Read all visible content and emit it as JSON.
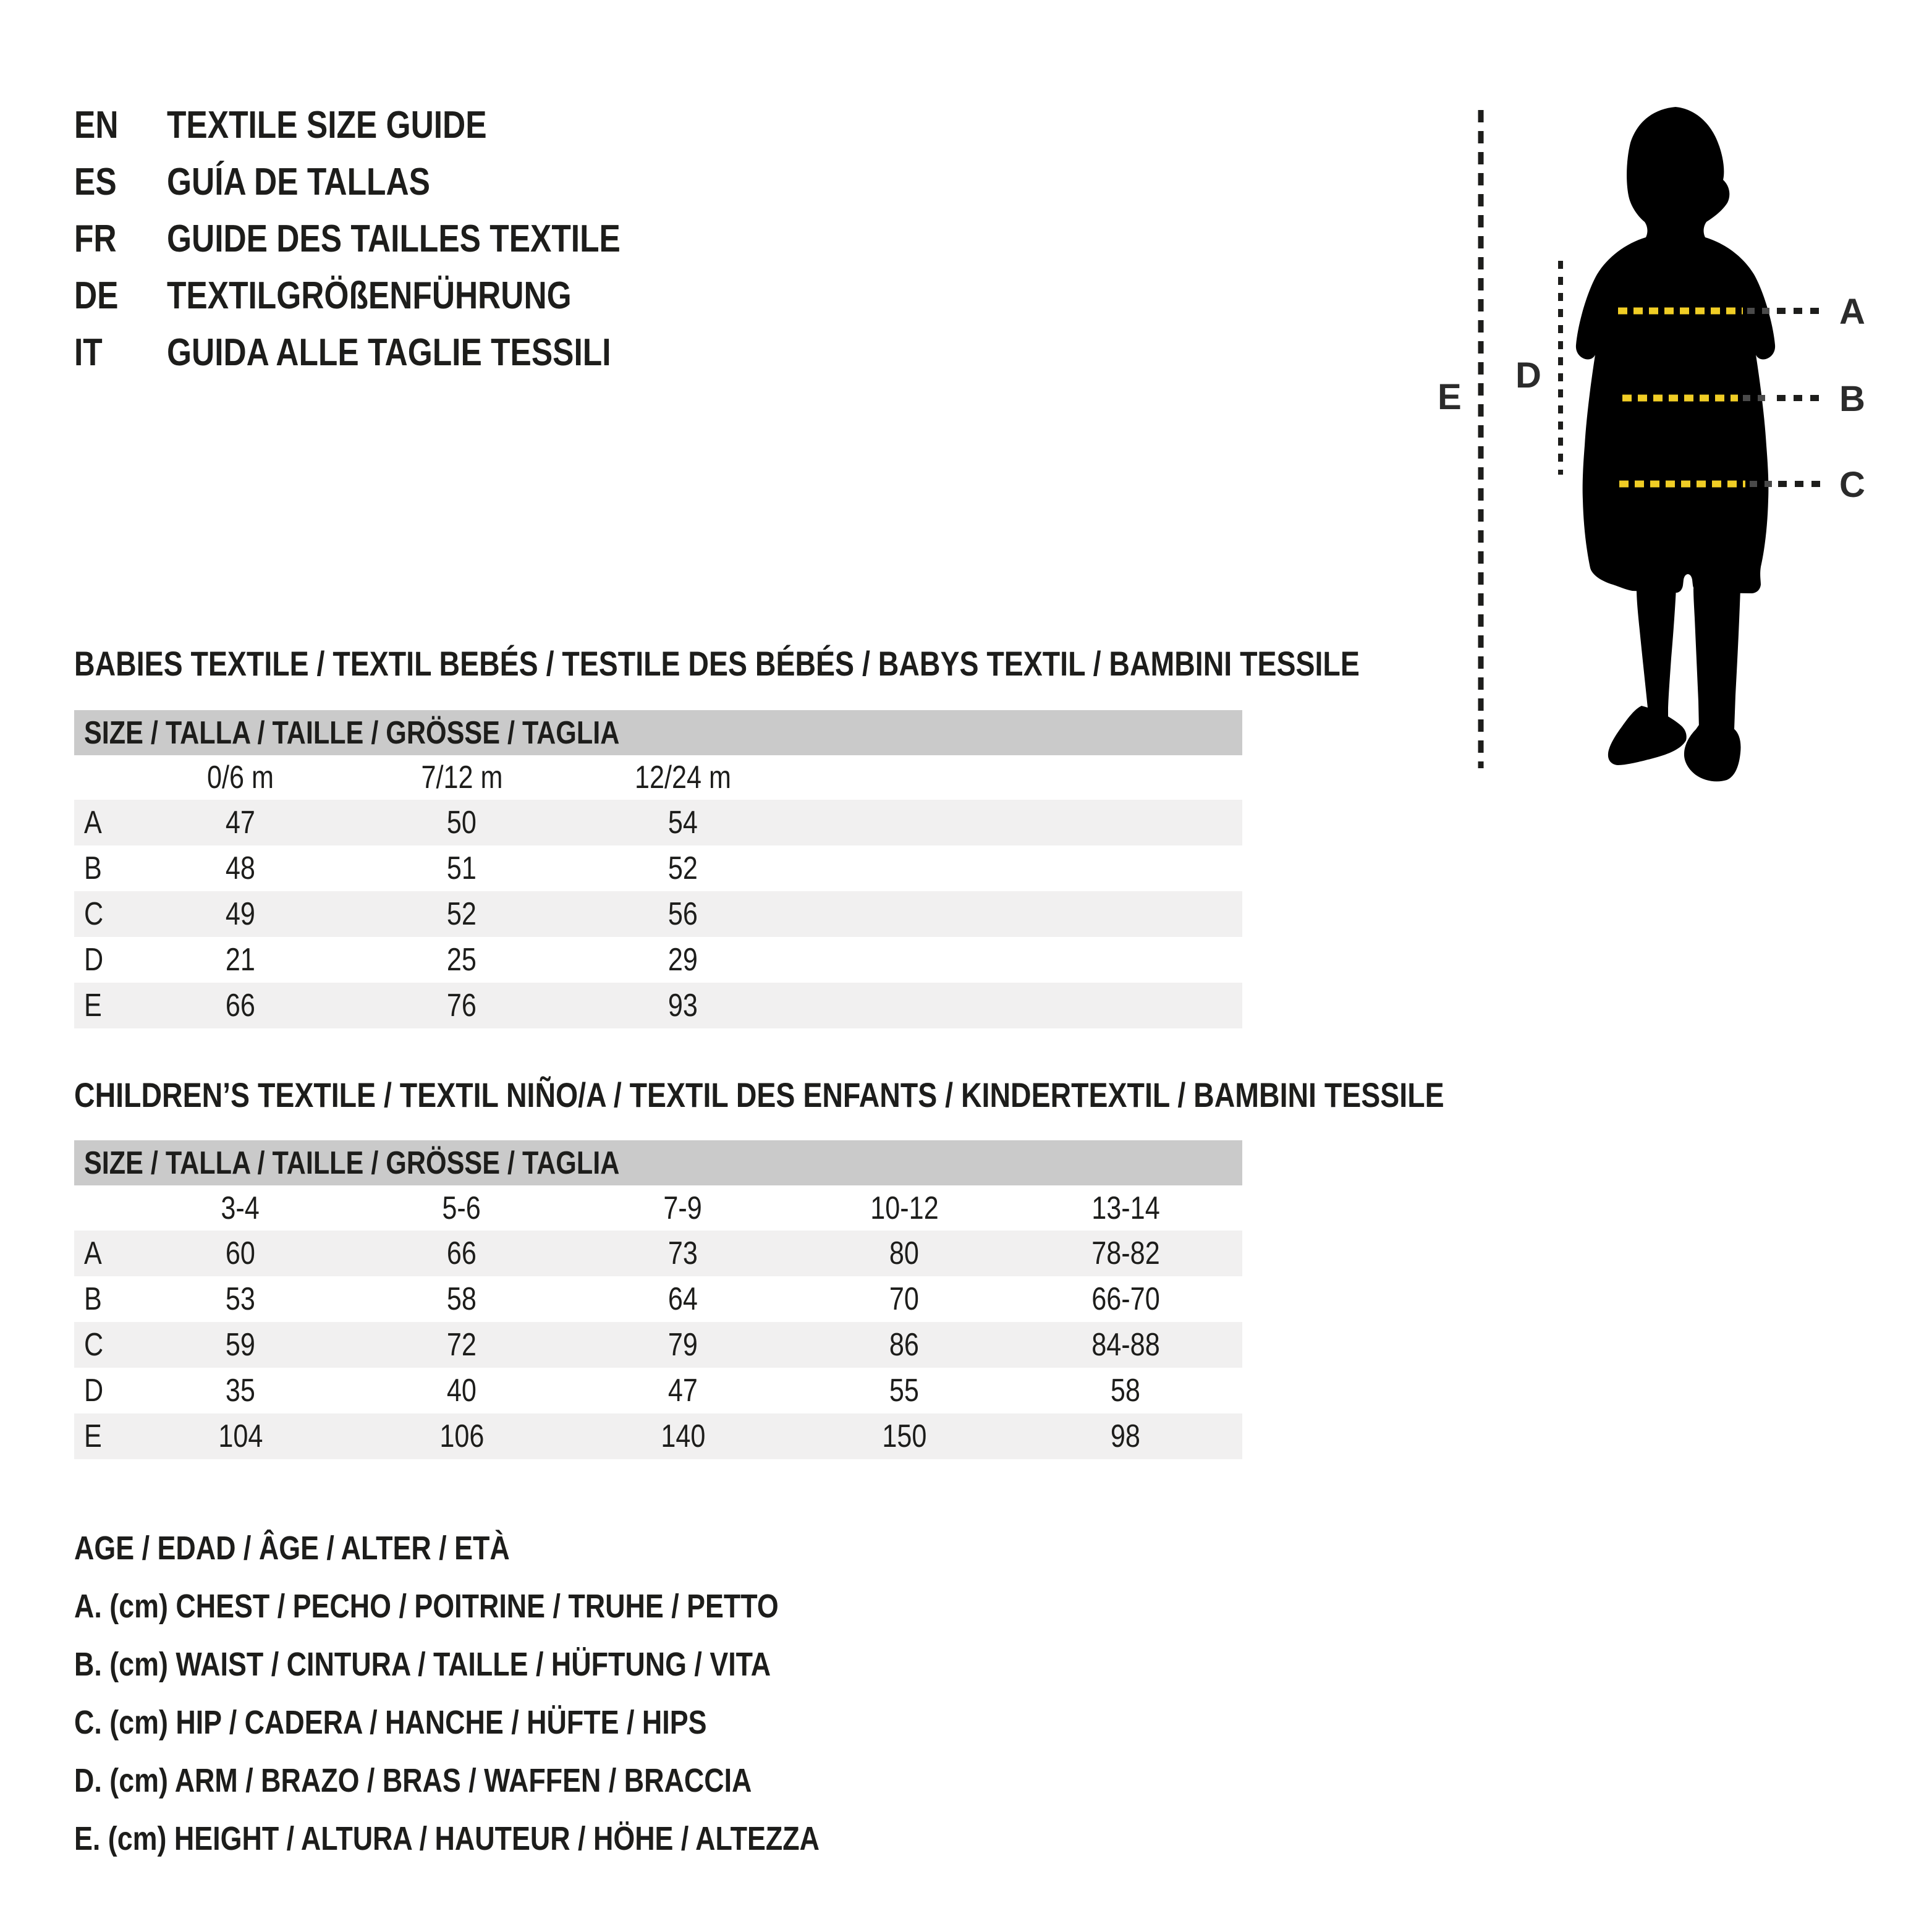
{
  "languages": [
    {
      "code": "EN",
      "label": "TEXTILE SIZE GUIDE"
    },
    {
      "code": "ES",
      "label": "GUÍA DE TALLAS"
    },
    {
      "code": "FR",
      "label": "GUIDE DES TAILLES TEXTILE"
    },
    {
      "code": "DE",
      "label": "TEXTILGRÖßENFÜHRUNG"
    },
    {
      "code": "IT",
      "label": "GUIDA ALLE TAGLIE TESSILI"
    }
  ],
  "figure": {
    "measure_labels": {
      "chest": "A",
      "waist": "B",
      "hip": "C",
      "arm": "D",
      "height": "E"
    },
    "colors": {
      "silhouette": "#000000",
      "measure_yellow": "#f0cd25",
      "measure_faded": "#4a4a4a",
      "measure_black": "#1d1d1b",
      "label_text": "#2b2b2b"
    }
  },
  "tables": [
    {
      "id": "babies",
      "title": "BABIES TEXTILE / TEXTIL BEBÉS / TESTILE DES BÉBÉS / BABYS TEXTIL / BAMBINI TESSILE",
      "size_header": "SIZE / TALLA / TAILLE / GRÖSSE / TAGLIA",
      "columns": [
        "0/6 m",
        "7/12 m",
        "12/24 m"
      ],
      "rows": [
        {
          "label": "A",
          "values": [
            "47",
            "50",
            "54"
          ]
        },
        {
          "label": "B",
          "values": [
            "48",
            "51",
            "52"
          ]
        },
        {
          "label": "C",
          "values": [
            "49",
            "52",
            "56"
          ]
        },
        {
          "label": "D",
          "values": [
            "21",
            "25",
            "29"
          ]
        },
        {
          "label": "E",
          "values": [
            "66",
            "76",
            "93"
          ]
        }
      ]
    },
    {
      "id": "children",
      "title": "CHILDREN’S TEXTILE / TEXTIL NIÑO/A / TEXTIL DES ENFANTS / KINDERTEXTIL / BAMBINI TESSILE",
      "size_header": "SIZE / TALLA / TAILLE / GRÖSSE / TAGLIA",
      "columns": [
        "3-4",
        "5-6",
        "7-9",
        "10-12",
        "13-14"
      ],
      "rows": [
        {
          "label": "A",
          "values": [
            "60",
            "66",
            "73",
            "80",
            "78-82"
          ]
        },
        {
          "label": "B",
          "values": [
            "53",
            "58",
            "64",
            "70",
            "66-70"
          ]
        },
        {
          "label": "C",
          "values": [
            "59",
            "72",
            "79",
            "86",
            "84-88"
          ]
        },
        {
          "label": "D",
          "values": [
            "35",
            "40",
            "47",
            "55",
            "58"
          ]
        },
        {
          "label": "E",
          "values": [
            "104",
            "106",
            "140",
            "150",
            "98"
          ]
        }
      ]
    }
  ],
  "legend": [
    "AGE / EDAD / ÂGE / ALTER / ETÀ",
    "A. (cm) CHEST / PECHO / POITRINE / TRUHE / PETTO",
    "B. (cm) WAIST / CINTURA / TAILLE / HÜFTUNG / VITA",
    "C. (cm) HIP / CADERA / HANCHE / HÜFTE / HIPS",
    "D. (cm) ARM / BRAZO / BRAS / WAFFEN / BRACCIA",
    "E. (cm) HEIGHT / ALTURA / HAUTEUR / HÖHE / ALTEZZA"
  ],
  "colors": {
    "header_bar_gray": "#cacaca",
    "row_stripe_gray": "#f1f0f0",
    "text": "#1d1d1b",
    "background": "#ffffff"
  }
}
